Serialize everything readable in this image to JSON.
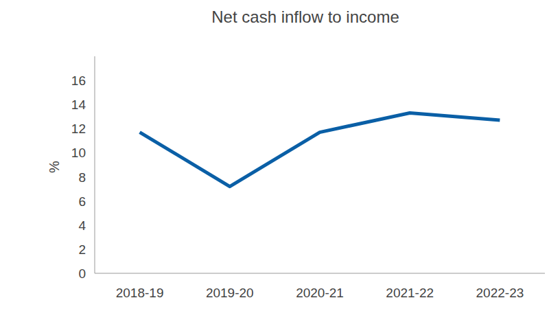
{
  "chart_data": {
    "type": "line",
    "title": "Net cash inflow to income",
    "ylabel": "%",
    "categories": [
      "2018-19",
      "2019-20",
      "2020-21",
      "2021-22",
      "2022-23"
    ],
    "values": [
      11.7,
      7.2,
      11.7,
      13.3,
      12.7
    ],
    "color": "#0a5fa6",
    "ylim": [
      0,
      18
    ],
    "yticks": [
      0,
      2,
      4,
      6,
      8,
      10,
      12,
      14,
      16
    ],
    "grid": false
  }
}
